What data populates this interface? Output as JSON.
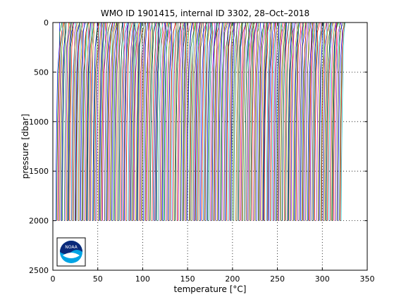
{
  "chart_data": {
    "type": "line",
    "title": "WMO ID 1901415, internal ID 3302, 28–Oct–2018",
    "xlabel": "temperature [°C]",
    "ylabel": "pressure [dbar]",
    "xlim": [
      0,
      350
    ],
    "ylim": [
      2500,
      0
    ],
    "y_reversed": true,
    "grid": "dotted",
    "x_ticks": [
      "0",
      "50",
      "100",
      "150",
      "200",
      "250",
      "300",
      "350"
    ],
    "y_ticks": [
      "0",
      "500",
      "1000",
      "1500",
      "2000",
      "2500"
    ],
    "series_colors": [
      "#0000ff",
      "#008000",
      "#ff0000",
      "#00bfbf",
      "#bf00bf",
      "#bfbf00",
      "#404040"
    ],
    "profile_offset_step": 1.0,
    "profiles": {
      "count": 319,
      "offsets": "increasing 0 to 318 by profile_offset_step",
      "temperature_shape": [
        {
          "pressure": 0,
          "temperature": 8.0
        },
        {
          "pressure": 100,
          "temperature": 7.0
        },
        {
          "pressure": 250,
          "temperature": 6.0
        },
        {
          "pressure": 500,
          "temperature": 5.0
        },
        {
          "pressure": 1000,
          "temperature": 4.0
        },
        {
          "pressure": 1500,
          "temperature": 3.4
        },
        {
          "pressure": 2000,
          "temperature": 3.0
        }
      ],
      "max_pressure": 2000
    },
    "logo": "noaa-logo"
  }
}
